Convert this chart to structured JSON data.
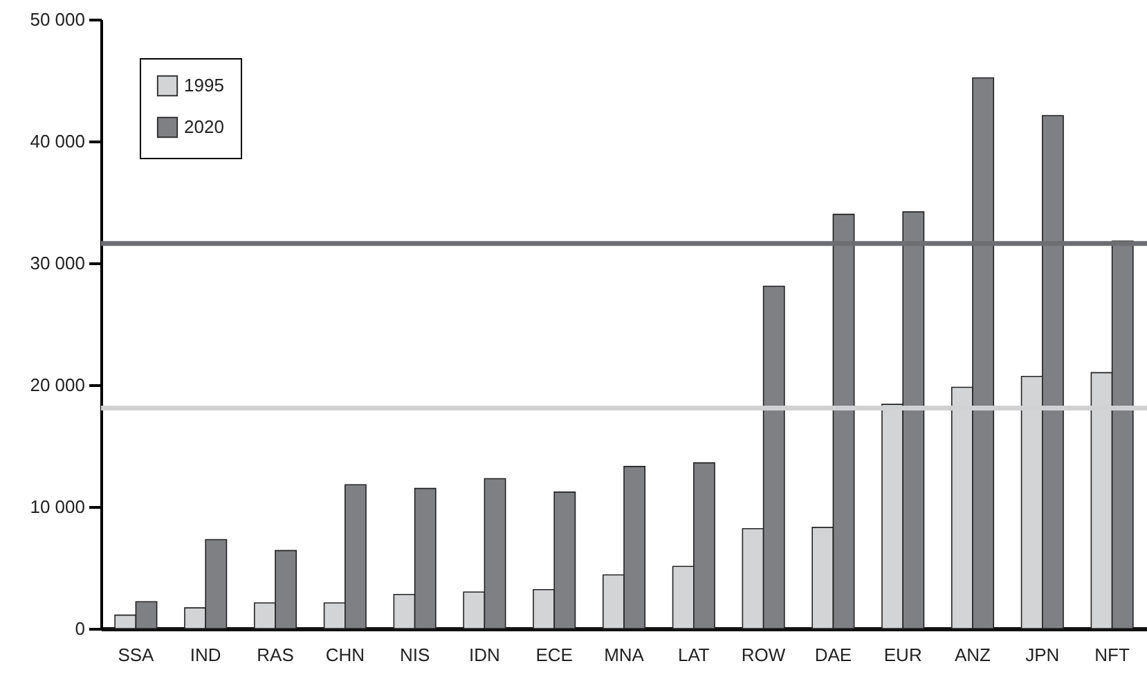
{
  "chart_data": {
    "type": "bar",
    "categories": [
      "SSA",
      "IND",
      "RAS",
      "CHN",
      "NIS",
      "IDN",
      "ECE",
      "MNA",
      "LAT",
      "ROW",
      "DAE",
      "EUR",
      "ANZ",
      "JPN",
      "NFT"
    ],
    "series": [
      {
        "name": "1995",
        "color": "#d3d4d6",
        "values": [
          1100,
          1700,
          2100,
          2100,
          2800,
          3000,
          3200,
          4400,
          5100,
          8200,
          8300,
          18400,
          19800,
          20700,
          21000
        ]
      },
      {
        "name": "2020",
        "color": "#7f8084",
        "values": [
          2200,
          7300,
          6400,
          11800,
          11500,
          12300,
          11200,
          13300,
          13600,
          28100,
          34000,
          34200,
          45200,
          42100,
          31800
        ]
      }
    ],
    "ylim": [
      0,
      50000
    ],
    "yticks": [
      0,
      {
        "value": 10000,
        "label": "10 000"
      },
      {
        "value": 20000,
        "label": "20 000"
      },
      {
        "value": 30000,
        "label": "30 000"
      },
      {
        "value": 40000,
        "label": "40 000"
      },
      {
        "value": 50000,
        "label": "50 000"
      }
    ],
    "ref_lines": [
      {
        "axis": "y",
        "value": 31600,
        "color": "#6d6e71"
      },
      {
        "axis": "y",
        "value": 18100,
        "color": "#d0d1d3"
      }
    ],
    "legend": "top left"
  }
}
